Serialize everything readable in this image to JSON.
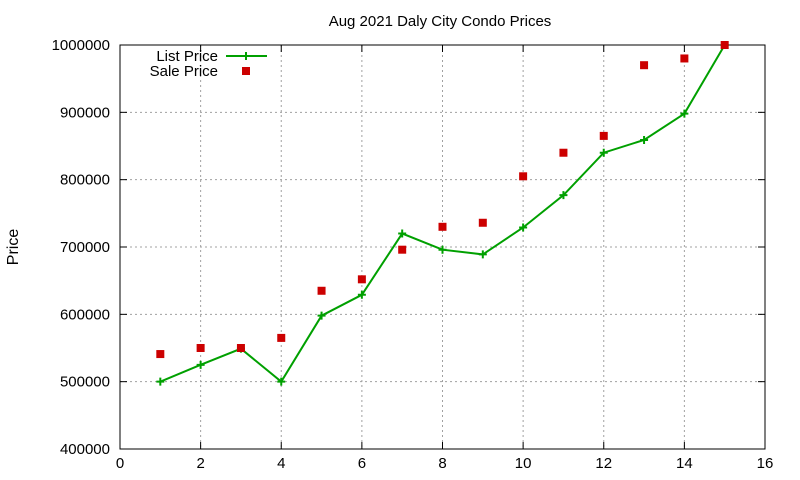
{
  "chart_data": {
    "type": "line",
    "title": "Aug 2021 Daly City Condo Prices",
    "xlabel": "",
    "ylabel": "Price",
    "xlim": [
      0,
      16
    ],
    "ylim": [
      400000,
      1000000
    ],
    "x_ticks": [
      0,
      2,
      4,
      6,
      8,
      10,
      12,
      14,
      16
    ],
    "y_ticks": [
      400000,
      500000,
      600000,
      700000,
      800000,
      900000,
      1000000
    ],
    "grid": true,
    "legend_position": "top-left",
    "series": [
      {
        "name": "List Price",
        "style": "line-points",
        "marker": "plus",
        "color": "#00a000",
        "points": [
          {
            "x": 1,
            "y": 500000
          },
          {
            "x": 2,
            "y": 525000
          },
          {
            "x": 3,
            "y": 549000
          },
          {
            "x": 4,
            "y": 500000
          },
          {
            "x": 5,
            "y": 598000
          },
          {
            "x": 6,
            "y": 629000
          },
          {
            "x": 7,
            "y": 720000
          },
          {
            "x": 8,
            "y": 696000
          },
          {
            "x": 9,
            "y": 689000
          },
          {
            "x": 10,
            "y": 729000
          },
          {
            "x": 11,
            "y": 777000
          },
          {
            "x": 12,
            "y": 840000
          },
          {
            "x": 13,
            "y": 859000
          },
          {
            "x": 14,
            "y": 898000
          },
          {
            "x": 15,
            "y": 1000000
          }
        ]
      },
      {
        "name": "Sale Price",
        "style": "points",
        "marker": "square",
        "color": "#cc0000",
        "points": [
          {
            "x": 1,
            "y": 541000
          },
          {
            "x": 2,
            "y": 550000
          },
          {
            "x": 3,
            "y": 550000
          },
          {
            "x": 4,
            "y": 565000
          },
          {
            "x": 5,
            "y": 635000
          },
          {
            "x": 6,
            "y": 652000
          },
          {
            "x": 7,
            "y": 696000
          },
          {
            "x": 8,
            "y": 730000
          },
          {
            "x": 9,
            "y": 736000
          },
          {
            "x": 10,
            "y": 805000
          },
          {
            "x": 11,
            "y": 840000
          },
          {
            "x": 12,
            "y": 865000
          },
          {
            "x": 13,
            "y": 970000
          },
          {
            "x": 14,
            "y": 980000
          },
          {
            "x": 15,
            "y": 1000000
          }
        ]
      }
    ]
  }
}
